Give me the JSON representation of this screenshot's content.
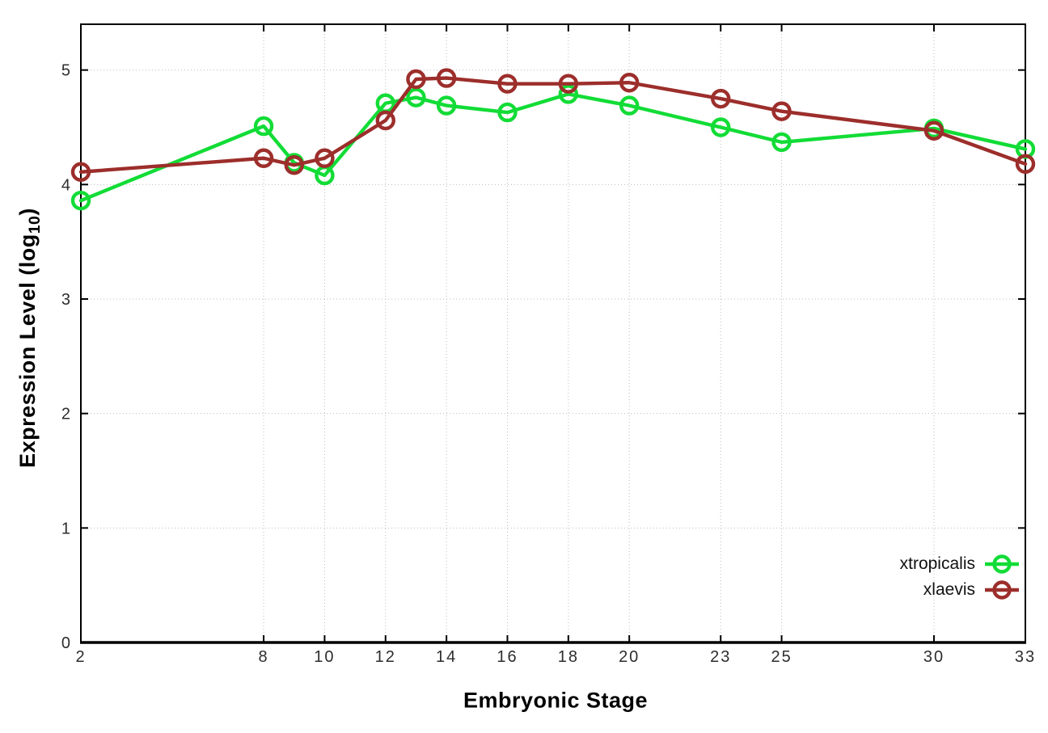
{
  "chart_data": {
    "type": "line",
    "title": "",
    "xlabel": "Embryonic Stage",
    "ylabel": "Expression Level (log10)",
    "ylabel_parts": {
      "main": "Expression Level (log",
      "sub": "10",
      "close": ")"
    },
    "x": [
      2,
      8,
      9,
      10,
      12,
      13,
      14,
      16,
      18,
      20,
      23,
      25,
      30,
      33
    ],
    "xticks": [
      2,
      8,
      10,
      12,
      14,
      16,
      18,
      20,
      23,
      25,
      30,
      33
    ],
    "yticks": [
      0,
      1,
      2,
      3,
      4,
      5
    ],
    "xlim": [
      2,
      33
    ],
    "ylim": [
      0,
      5.4
    ],
    "grid": true,
    "legend_position": "bottom-right-inside",
    "series": [
      {
        "name": "xtropicalis",
        "color": "#12dc36",
        "values": [
          3.86,
          4.51,
          4.19,
          4.08,
          4.71,
          4.76,
          4.69,
          4.63,
          4.79,
          4.69,
          4.5,
          4.37,
          4.49,
          4.31
        ]
      },
      {
        "name": "xlaevis",
        "color": "#9c2e2b",
        "values": [
          4.11,
          4.23,
          4.17,
          4.23,
          4.56,
          4.92,
          4.93,
          4.88,
          4.88,
          4.89,
          4.75,
          4.64,
          4.47,
          4.18
        ]
      }
    ],
    "colors": {
      "axis": "#000000",
      "grid": "#bdbdbd",
      "tick_label": "#2d2d2d"
    }
  }
}
